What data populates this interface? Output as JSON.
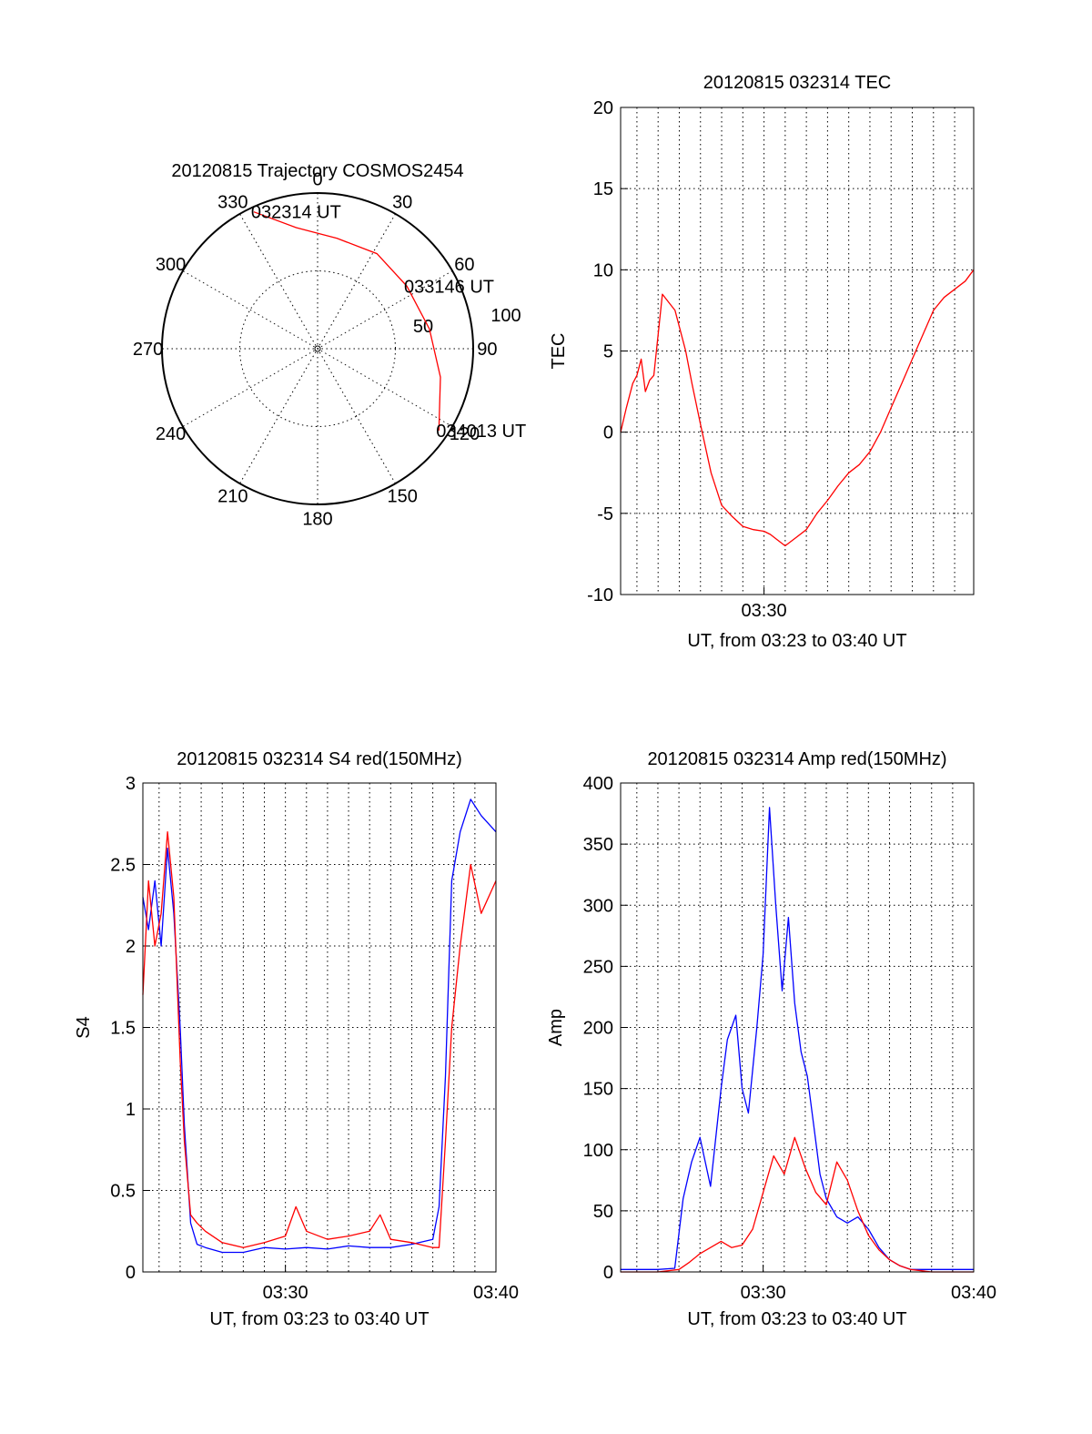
{
  "colors": {
    "red": "#ff0000",
    "blue": "#0000ff",
    "axis": "#000000",
    "background": "#ffffff"
  },
  "chart_data": [
    {
      "id": "trajectory",
      "type": "polar",
      "title": "20120815 Trajectory COSMOS2454",
      "azimuth_labels": [
        "0",
        "30",
        "60",
        "90",
        "120",
        "150",
        "180",
        "210",
        "240",
        "270",
        "300",
        "330"
      ],
      "elevation_ring_labels": [
        "50",
        "100"
      ],
      "grid": true,
      "series": [
        {
          "color": "#ff0000",
          "points": [
            {
              "azimuth_deg": 335,
              "radial": 97
            },
            {
              "azimuth_deg": 350,
              "radial": 79
            },
            {
              "azimuth_deg": 10,
              "radial": 72
            },
            {
              "azimuth_deg": 32,
              "radial": 72
            },
            {
              "azimuth_deg": 55,
              "radial": 70
            },
            {
              "azimuth_deg": 80,
              "radial": 73
            },
            {
              "azimuth_deg": 103,
              "radial": 81
            },
            {
              "azimuth_deg": 124,
              "radial": 94
            }
          ]
        }
      ],
      "annotations": [
        {
          "text": "032314 UT",
          "azimuth_deg": 335,
          "radial": 97
        },
        {
          "text": "033146 UT",
          "azimuth_deg": 55,
          "radial": 70
        },
        {
          "text": "034013 UT",
          "azimuth_deg": 124,
          "radial": 94
        }
      ]
    },
    {
      "id": "tec",
      "type": "line",
      "title": "20120815 032314 TEC",
      "xlabel": "UT, from 03:23 to 03:40 UT",
      "ylabel": "TEC",
      "x_unit": "minutes after 03:23 UT",
      "xlim": [
        0.23,
        16.9
      ],
      "ylim": [
        -10,
        20
      ],
      "yticks": [
        "20",
        "15",
        "10",
        "5",
        "0",
        "-5",
        "-10"
      ],
      "xticks": [
        {
          "label": "03:30",
          "at": 7
        }
      ],
      "grid": true,
      "series": [
        {
          "color": "#ff0000",
          "x": [
            0.23,
            0.5,
            0.8,
            1.0,
            1.2,
            1.4,
            1.6,
            1.8,
            2.0,
            2.2,
            2.5,
            2.8,
            3.0,
            3.3,
            3.6,
            4.0,
            4.5,
            5.0,
            5.5,
            6.0,
            6.5,
            7.0,
            7.3,
            7.6,
            8.0,
            8.5,
            9.0,
            9.5,
            10.0,
            10.5,
            11.0,
            11.5,
            12.0,
            12.5,
            13.0,
            13.5,
            14.0,
            14.5,
            15.0,
            15.5,
            16.0,
            16.5,
            16.9
          ],
          "y": [
            0,
            1.5,
            3.0,
            3.5,
            4.5,
            2.5,
            3.2,
            3.5,
            6.0,
            8.5,
            8.0,
            7.5,
            6.5,
            5.0,
            3.0,
            0.5,
            -2.5,
            -4.5,
            -5.2,
            -5.8,
            -6.0,
            -6.1,
            -6.3,
            -6.6,
            -7.0,
            -6.5,
            -6.0,
            -5.0,
            -4.2,
            -3.3,
            -2.5,
            -2.0,
            -1.2,
            0,
            1.5,
            3.0,
            4.5,
            6.0,
            7.5,
            8.3,
            8.8,
            9.3,
            10.0
          ]
        }
      ]
    },
    {
      "id": "s4",
      "type": "line",
      "title": "20120815 032314 S4 red(150MHz)",
      "xlabel": "UT, from 03:23 to 03:40 UT",
      "ylabel": "S4",
      "x_unit": "minutes after 03:23 UT",
      "xlim": [
        0.23,
        17
      ],
      "ylim": [
        0,
        3
      ],
      "yticks": [
        "3",
        "2.5",
        "2",
        "1.5",
        "1",
        "0.5",
        "0"
      ],
      "xticks": [
        {
          "label": "03:30",
          "at": 7
        },
        {
          "label": "03:40",
          "at": 17
        }
      ],
      "grid": true,
      "series": [
        {
          "color": "#0000ff",
          "x": [
            0.23,
            0.5,
            0.8,
            1.1,
            1.4,
            1.7,
            2.0,
            2.2,
            2.5,
            2.8,
            3.2,
            4.0,
            5.0,
            6.0,
            7.0,
            8.0,
            9.0,
            10.0,
            11.0,
            12.0,
            13.0,
            14.0,
            14.3,
            14.6,
            14.9,
            15.3,
            15.8,
            16.3,
            17.0
          ],
          "y": [
            2.3,
            2.1,
            2.4,
            2.0,
            2.6,
            2.2,
            1.5,
            0.9,
            0.3,
            0.17,
            0.15,
            0.12,
            0.12,
            0.15,
            0.14,
            0.15,
            0.14,
            0.16,
            0.15,
            0.15,
            0.17,
            0.2,
            0.4,
            1.2,
            2.4,
            2.7,
            2.9,
            2.8,
            2.7
          ]
        },
        {
          "color": "#ff0000",
          "x": [
            0.23,
            0.5,
            0.8,
            1.1,
            1.4,
            1.7,
            2.0,
            2.2,
            2.5,
            2.8,
            3.2,
            4.0,
            5.0,
            6.0,
            7.0,
            7.5,
            8.0,
            9.0,
            10.0,
            11.0,
            11.5,
            12.0,
            13.0,
            14.0,
            14.3,
            14.6,
            14.9,
            15.3,
            15.8,
            16.3,
            17.0
          ],
          "y": [
            1.7,
            2.4,
            2.0,
            2.2,
            2.7,
            2.3,
            1.3,
            0.8,
            0.35,
            0.3,
            0.25,
            0.18,
            0.15,
            0.18,
            0.22,
            0.4,
            0.25,
            0.2,
            0.22,
            0.25,
            0.35,
            0.2,
            0.18,
            0.15,
            0.15,
            0.8,
            1.5,
            2.0,
            2.5,
            2.2,
            2.4
          ]
        }
      ]
    },
    {
      "id": "amp",
      "type": "line",
      "title": "20120815 032314 Amp red(150MHz)",
      "xlabel": "UT, from 03:23 to 03:40 UT",
      "ylabel": "Amp",
      "x_unit": "minutes after 03:23 UT",
      "xlim": [
        0.23,
        17
      ],
      "ylim": [
        0,
        400
      ],
      "yticks": [
        "400",
        "350",
        "300",
        "250",
        "200",
        "150",
        "100",
        "50",
        "0"
      ],
      "xticks": [
        {
          "label": "03:30",
          "at": 7
        },
        {
          "label": "03:40",
          "at": 17
        }
      ],
      "grid": true,
      "series": [
        {
          "color": "#0000ff",
          "x": [
            0.23,
            1.0,
            2.0,
            2.8,
            3.2,
            3.6,
            4.0,
            4.5,
            5.0,
            5.3,
            5.7,
            6.0,
            6.3,
            6.7,
            7.0,
            7.3,
            7.6,
            7.9,
            8.2,
            8.5,
            8.8,
            9.1,
            9.4,
            9.7,
            10.0,
            10.5,
            11.0,
            11.5,
            12.0,
            12.5,
            13.0,
            13.5,
            14.0,
            15.0,
            16.0,
            17.0
          ],
          "y": [
            2,
            2,
            2,
            3,
            60,
            90,
            110,
            70,
            150,
            190,
            210,
            150,
            130,
            200,
            260,
            380,
            300,
            230,
            290,
            220,
            180,
            160,
            120,
            80,
            60,
            45,
            40,
            45,
            35,
            20,
            10,
            5,
            2,
            2,
            2,
            2
          ]
        },
        {
          "color": "#ff0000",
          "x": [
            0.23,
            1.0,
            2.0,
            3.0,
            3.5,
            4.0,
            4.5,
            5.0,
            5.5,
            6.0,
            6.5,
            7.0,
            7.5,
            8.0,
            8.5,
            9.0,
            9.5,
            10.0,
            10.5,
            11.0,
            11.5,
            12.0,
            12.5,
            13.0,
            13.5,
            14.0,
            15.0,
            16.0,
            17.0
          ],
          "y": [
            0,
            0,
            0,
            2,
            8,
            15,
            20,
            25,
            20,
            22,
            35,
            65,
            95,
            80,
            110,
            85,
            65,
            55,
            90,
            75,
            50,
            30,
            18,
            10,
            5,
            2,
            0,
            0,
            0
          ]
        }
      ]
    }
  ]
}
